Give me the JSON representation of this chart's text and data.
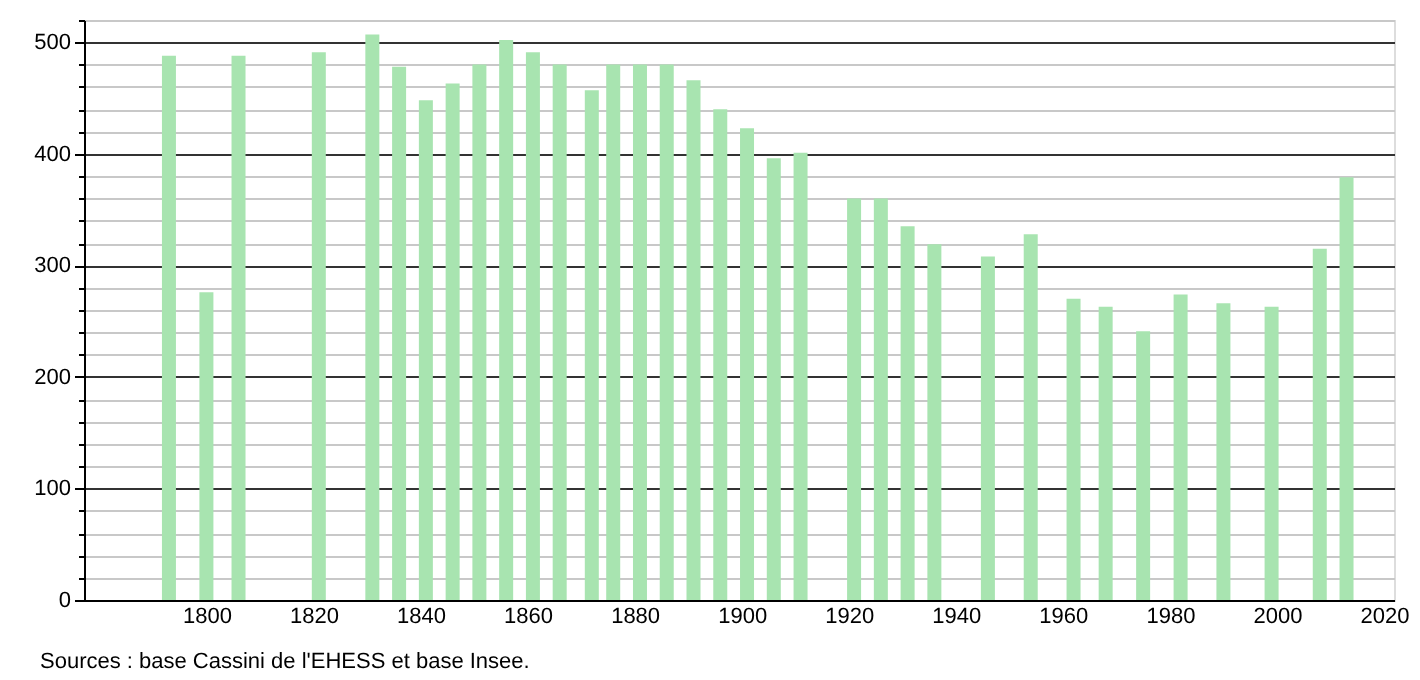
{
  "chart_data": {
    "type": "bar",
    "x": [
      1793,
      1800,
      1806,
      1821,
      1831,
      1836,
      1841,
      1846,
      1851,
      1856,
      1861,
      1866,
      1872,
      1876,
      1881,
      1886,
      1891,
      1896,
      1901,
      1906,
      1911,
      1921,
      1926,
      1931,
      1936,
      1946,
      1954,
      1962,
      1968,
      1975,
      1982,
      1990,
      1999,
      2008,
      2013
    ],
    "values": [
      488,
      276,
      488,
      491,
      507,
      478,
      448,
      463,
      480,
      502,
      491,
      480,
      457,
      480,
      480,
      480,
      466,
      440,
      423,
      396,
      401,
      360,
      360,
      335,
      319,
      308,
      328,
      270,
      263,
      241,
      274,
      266,
      263,
      315,
      379
    ],
    "color": "#a8e4b0",
    "xlim": [
      1779,
      2020
    ],
    "xticks": [
      1800,
      1820,
      1840,
      1860,
      1880,
      1900,
      1920,
      1940,
      1960,
      1980,
      2000,
      2020
    ],
    "ylim": [
      0,
      520
    ],
    "yticks": [
      0,
      {
        "value": 20,
        "label": null
      },
      {
        "value": 40,
        "label": null
      },
      {
        "value": 60,
        "label": null
      },
      {
        "value": 80,
        "label": null
      },
      100,
      {
        "value": 120,
        "label": null
      },
      {
        "value": 140,
        "label": null
      },
      {
        "value": 160,
        "label": null
      },
      {
        "value": 180,
        "label": null
      },
      200,
      {
        "value": 220,
        "label": null
      },
      {
        "value": 240,
        "label": null
      },
      {
        "value": 260,
        "label": null
      },
      {
        "value": 280,
        "label": null
      },
      300,
      {
        "value": 320,
        "label": null
      },
      {
        "value": 340,
        "label": null
      },
      {
        "value": 360,
        "label": null
      },
      {
        "value": 380,
        "label": null
      },
      400,
      {
        "value": 420,
        "label": null
      },
      {
        "value": 440,
        "label": null
      },
      {
        "value": 460,
        "label": null
      },
      {
        "value": 480,
        "label": null
      },
      500,
      {
        "value": 520,
        "label": null
      }
    ],
    "grid": "y",
    "annotations": [
      "Sources : base Cassini de l'EHESS et base Insee."
    ]
  }
}
